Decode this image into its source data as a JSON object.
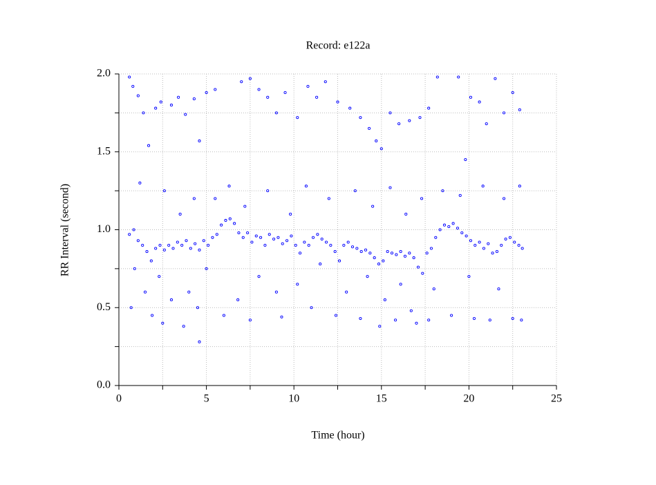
{
  "chart_data": {
    "type": "scatter",
    "title": "Record:  e122a",
    "xlabel": "Time (hour)",
    "ylabel": "RR Interval (second)",
    "color": "#0000ff",
    "grid": true,
    "xlim": [
      0,
      25
    ],
    "xticks": [
      0,
      5,
      10,
      15,
      20,
      25
    ],
    "x_minor_ticks": [
      2.5,
      7.5,
      12.5,
      17.5,
      22.5
    ],
    "ylim": [
      0,
      2
    ],
    "yticks": [
      {
        "value": 0,
        "label": "0.0"
      },
      0.5,
      {
        "value": 1,
        "label": "1.0"
      },
      1.5,
      {
        "value": 2,
        "label": "2.0"
      }
    ],
    "y_minor_ticks": [
      0.25,
      0.75,
      1.25,
      1.75
    ],
    "x": [
      0.6,
      0.85,
      1.1,
      1.35,
      1.6,
      1.85,
      2.1,
      2.35,
      2.6,
      2.85,
      3.1,
      3.35,
      3.6,
      3.85,
      4.1,
      4.35,
      4.6,
      4.85,
      5.1,
      5.35,
      5.6,
      5.85,
      6.1,
      6.35,
      6.6,
      6.85,
      7.1,
      7.35,
      7.6,
      7.85,
      8.1,
      8.35,
      8.6,
      8.85,
      9.1,
      9.35,
      9.6,
      9.85,
      10.1,
      10.35,
      10.6,
      10.85,
      11.1,
      11.35,
      11.6,
      11.85,
      12.1,
      12.35,
      12.6,
      12.85,
      13.1,
      13.35,
      13.6,
      13.85,
      14.1,
      14.35,
      14.6,
      14.85,
      15.1,
      15.35,
      15.6,
      15.85,
      16.1,
      16.35,
      16.6,
      16.85,
      17.1,
      17.35,
      17.6,
      17.85,
      18.1,
      18.35,
      18.6,
      18.85,
      19.1,
      19.35,
      19.6,
      19.85,
      20.1,
      20.35,
      20.6,
      20.85,
      21.1,
      21.35,
      21.6,
      21.85,
      22.1,
      22.35,
      22.6,
      22.85,
      23.05,
      0.7,
      0.9,
      1.2,
      1.5,
      1.9,
      2.3,
      2.5,
      2.6,
      3.0,
      3.5,
      3.7,
      4.0,
      4.3,
      4.5,
      4.6,
      5.0,
      5.5,
      6.0,
      6.3,
      6.8,
      7.2,
      7.5,
      8.0,
      8.5,
      9.0,
      9.3,
      9.8,
      10.2,
      10.7,
      11.0,
      11.5,
      12.0,
      12.4,
      13.0,
      13.5,
      13.8,
      14.2,
      14.5,
      14.9,
      15.2,
      15.5,
      15.8,
      16.1,
      16.4,
      16.7,
      17.0,
      17.3,
      17.7,
      18.0,
      18.5,
      19.0,
      19.5,
      20.0,
      20.3,
      20.8,
      21.2,
      21.7,
      22.0,
      22.5,
      22.9,
      23.0,
      0.6,
      0.8,
      1.1,
      1.4,
      1.7,
      2.1,
      2.4,
      3.0,
      3.4,
      3.8,
      4.3,
      4.6,
      5.0,
      5.5,
      7.0,
      7.5,
      8.0,
      8.5,
      9.0,
      9.5,
      10.2,
      10.8,
      11.3,
      11.8,
      12.5,
      13.2,
      13.8,
      14.3,
      14.7,
      15.0,
      15.5,
      16.0,
      16.6,
      17.2,
      17.7,
      18.2,
      19.4,
      19.8,
      20.1,
      20.6,
      21.0,
      21.5,
      22.0,
      22.5,
      22.9
    ],
    "values": [
      0.97,
      1.0,
      0.93,
      0.9,
      0.86,
      0.8,
      0.88,
      0.9,
      0.87,
      0.9,
      0.88,
      0.92,
      0.9,
      0.93,
      0.88,
      0.91,
      0.87,
      0.93,
      0.9,
      0.95,
      0.97,
      1.03,
      1.06,
      1.07,
      1.04,
      0.98,
      0.95,
      0.98,
      0.92,
      0.96,
      0.95,
      0.9,
      0.97,
      0.94,
      0.95,
      0.91,
      0.93,
      0.96,
      0.9,
      0.85,
      0.92,
      0.9,
      0.95,
      0.97,
      0.94,
      0.92,
      0.9,
      0.86,
      0.8,
      0.9,
      0.92,
      0.89,
      0.88,
      0.86,
      0.87,
      0.85,
      0.82,
      0.78,
      0.8,
      0.86,
      0.85,
      0.84,
      0.86,
      0.83,
      0.85,
      0.82,
      0.76,
      0.72,
      0.85,
      0.88,
      0.95,
      1.0,
      1.03,
      1.02,
      1.04,
      1.01,
      0.98,
      0.96,
      0.93,
      0.9,
      0.92,
      0.88,
      0.91,
      0.85,
      0.86,
      0.9,
      0.94,
      0.95,
      0.92,
      0.9,
      0.88,
      0.5,
      0.75,
      1.3,
      0.6,
      0.45,
      0.7,
      0.4,
      1.25,
      0.55,
      1.1,
      0.38,
      0.6,
      1.2,
      0.5,
      0.28,
      0.75,
      1.2,
      0.45,
      1.28,
      0.55,
      1.15,
      0.42,
      0.7,
      1.25,
      0.6,
      0.44,
      1.1,
      0.65,
      1.28,
      0.5,
      0.78,
      1.2,
      0.45,
      0.6,
      1.25,
      0.43,
      0.7,
      1.15,
      0.38,
      0.55,
      1.27,
      0.42,
      0.65,
      1.1,
      0.48,
      0.4,
      1.2,
      0.42,
      0.62,
      1.25,
      0.45,
      1.22,
      0.7,
      0.43,
      1.28,
      0.42,
      0.62,
      1.2,
      0.43,
      1.28,
      0.42,
      1.98,
      1.92,
      1.86,
      1.75,
      1.54,
      1.78,
      1.82,
      1.8,
      1.85,
      1.74,
      1.84,
      1.57,
      1.88,
      1.9,
      1.95,
      1.97,
      1.9,
      1.85,
      1.75,
      1.88,
      1.72,
      1.92,
      1.85,
      1.95,
      1.82,
      1.78,
      1.72,
      1.65,
      1.57,
      1.52,
      1.75,
      1.68,
      1.7,
      1.72,
      1.78,
      1.98,
      1.98,
      1.45,
      1.85,
      1.82,
      1.68,
      1.97,
      1.75,
      1.88,
      1.77
    ]
  }
}
